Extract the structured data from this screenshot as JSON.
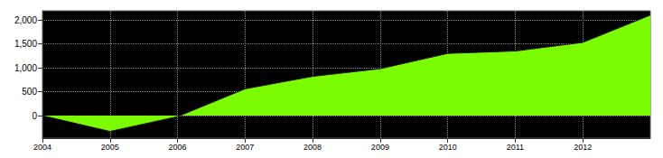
{
  "chart_data": {
    "type": "area",
    "x": [
      2004,
      2005,
      2006,
      2007,
      2008,
      2009,
      2010,
      2011,
      2012,
      2013
    ],
    "values": [
      0,
      -330,
      -20,
      560,
      820,
      980,
      1300,
      1350,
      1530,
      2100
    ],
    "color": "#7cfc00",
    "xlim": [
      2004,
      2013
    ],
    "xticks": [
      2004,
      2005,
      2006,
      2007,
      2008,
      2009,
      2010,
      2011,
      2012
    ],
    "ylim": [
      -470,
      2190
    ],
    "yticks": [
      0,
      500,
      {
        "value": 1000,
        "label": "1,000"
      },
      {
        "value": 1500,
        "label": "1,500"
      },
      {
        "value": 2000,
        "label": "2,000"
      }
    ],
    "grid": true
  }
}
